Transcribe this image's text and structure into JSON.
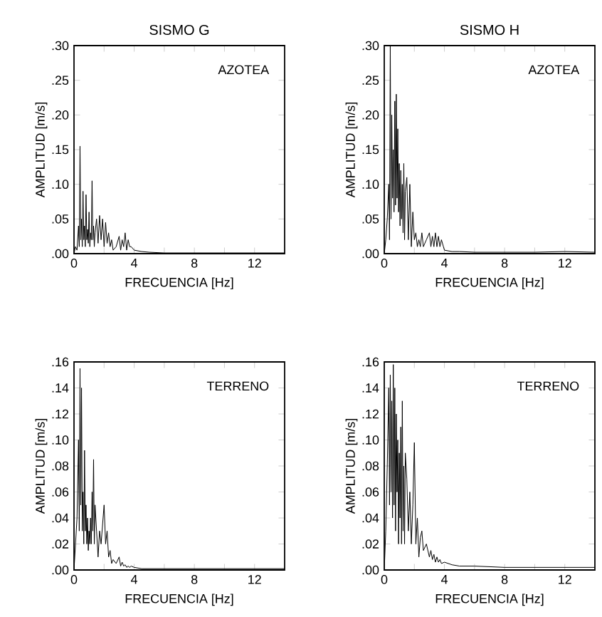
{
  "chart_data": [
    {
      "type": "line",
      "title": "SISMO G",
      "xlabel": "FRECUENCIA [Hz]",
      "ylabel": "AMPLITUD [m/s]",
      "annotations": [
        "AZOTEA"
      ],
      "xlim": [
        0,
        14
      ],
      "ylim": [
        0,
        0.3
      ],
      "xticks": [
        0,
        {
          "value": 2,
          "label": null
        },
        4,
        {
          "value": 6,
          "label": null
        },
        8,
        {
          "value": 10,
          "label": null
        },
        12
      ],
      "yticks": [
        {
          "value": 0,
          "label": ".00"
        },
        {
          "value": 0.05,
          "label": ".05"
        },
        {
          "value": 0.1,
          "label": ".10"
        },
        {
          "value": 0.15,
          "label": ".15"
        },
        {
          "value": 0.2,
          "label": ".20"
        },
        {
          "value": 0.25,
          "label": ".25"
        },
        {
          "value": 0.3,
          "label": ".30"
        }
      ],
      "x": [
        0,
        0.1,
        0.2,
        0.3,
        0.35,
        0.4,
        0.45,
        0.5,
        0.55,
        0.6,
        0.65,
        0.7,
        0.75,
        0.8,
        0.85,
        0.9,
        0.95,
        1.0,
        1.05,
        1.1,
        1.15,
        1.2,
        1.25,
        1.3,
        1.35,
        1.4,
        1.5,
        1.6,
        1.7,
        1.8,
        1.9,
        2.0,
        2.1,
        2.2,
        2.3,
        2.4,
        2.5,
        2.6,
        2.8,
        3.0,
        3.1,
        3.2,
        3.3,
        3.4,
        3.5,
        3.6,
        3.7,
        3.8,
        4.0,
        4.5,
        5,
        6,
        8,
        10,
        12,
        14
      ],
      "series": [
        {
          "color": "#000000",
          "values": [
            0,
            0.01,
            0.005,
            0.04,
            0.01,
            0.155,
            0.02,
            0.05,
            0.01,
            0.09,
            0.02,
            0.04,
            0.01,
            0.085,
            0.02,
            0.035,
            0.015,
            0.06,
            0.01,
            0.03,
            0.02,
            0.105,
            0.02,
            0.04,
            0.01,
            0.03,
            0.05,
            0.015,
            0.055,
            0.02,
            0.05,
            0.01,
            0.045,
            0.015,
            0.03,
            0.01,
            0.02,
            0.005,
            0.01,
            0.025,
            0.005,
            0.02,
            0.01,
            0.03,
            0.005,
            0.02,
            0.01,
            0.01,
            0.005,
            0.003,
            0.002,
            0.001,
            0.001,
            0.001,
            0.001,
            0.001
          ]
        }
      ]
    },
    {
      "type": "line",
      "title": "SISMO H",
      "xlabel": "FRECUENCIA [Hz]",
      "ylabel": "AMPLITUD [m/s]",
      "annotations": [
        "AZOTEA"
      ],
      "xlim": [
        0,
        14
      ],
      "ylim": [
        0,
        0.3
      ],
      "xticks": [
        0,
        {
          "value": 2,
          "label": null
        },
        4,
        {
          "value": 6,
          "label": null
        },
        8,
        {
          "value": 10,
          "label": null
        },
        12
      ],
      "yticks": [
        {
          "value": 0,
          "label": ".00"
        },
        {
          "value": 0.05,
          "label": ".05"
        },
        {
          "value": 0.1,
          "label": ".10"
        },
        {
          "value": 0.15,
          "label": ".15"
        },
        {
          "value": 0.2,
          "label": ".20"
        },
        {
          "value": 0.25,
          "label": ".25"
        },
        {
          "value": 0.3,
          "label": ".30"
        }
      ],
      "x": [
        0,
        0.1,
        0.2,
        0.3,
        0.35,
        0.4,
        0.45,
        0.5,
        0.55,
        0.6,
        0.65,
        0.7,
        0.75,
        0.8,
        0.85,
        0.9,
        0.95,
        1.0,
        1.05,
        1.1,
        1.15,
        1.2,
        1.25,
        1.3,
        1.35,
        1.4,
        1.5,
        1.6,
        1.7,
        1.8,
        1.9,
        2.0,
        2.1,
        2.2,
        2.3,
        2.4,
        2.5,
        2.6,
        2.8,
        3.0,
        3.1,
        3.2,
        3.3,
        3.4,
        3.5,
        3.6,
        3.7,
        3.8,
        4.0,
        4.5,
        5,
        6,
        8,
        10,
        12,
        14
      ],
      "series": [
        {
          "color": "#000000",
          "values": [
            0,
            0.02,
            0.05,
            0.1,
            0.02,
            0.3,
            0.05,
            0.2,
            0.08,
            0.15,
            0.06,
            0.22,
            0.07,
            0.23,
            0.08,
            0.18,
            0.06,
            0.13,
            0.04,
            0.12,
            0.05,
            0.1,
            0.03,
            0.13,
            0.02,
            0.09,
            0.11,
            0.02,
            0.1,
            0.01,
            0.06,
            0.02,
            0.03,
            0.01,
            0.02,
            0.01,
            0.03,
            0.01,
            0.02,
            0.03,
            0.01,
            0.025,
            0.01,
            0.03,
            0.01,
            0.025,
            0.01,
            0.02,
            0.005,
            0.003,
            0.003,
            0.002,
            0.002,
            0.002,
            0.003,
            0.002
          ]
        }
      ]
    },
    {
      "type": "line",
      "xlabel": "FRECUENCIA [Hz]",
      "ylabel": "AMPLITUD [m/s]",
      "annotations": [
        "TERRENO"
      ],
      "xlim": [
        0,
        14
      ],
      "ylim": [
        0,
        0.16
      ],
      "xticks": [
        0,
        {
          "value": 2,
          "label": null
        },
        4,
        {
          "value": 6,
          "label": null
        },
        8,
        {
          "value": 10,
          "label": null
        },
        12
      ],
      "yticks": [
        {
          "value": 0,
          "label": ".00"
        },
        {
          "value": 0.02,
          "label": ".02"
        },
        {
          "value": 0.04,
          "label": ".04"
        },
        {
          "value": 0.06,
          "label": ".06"
        },
        {
          "value": 0.08,
          "label": ".08"
        },
        {
          "value": 0.1,
          "label": ".10"
        },
        {
          "value": 0.12,
          "label": ".12"
        },
        {
          "value": 0.14,
          "label": ".14"
        },
        {
          "value": 0.16,
          "label": ".16"
        }
      ],
      "x": [
        0,
        0.1,
        0.2,
        0.3,
        0.35,
        0.4,
        0.45,
        0.5,
        0.55,
        0.6,
        0.65,
        0.7,
        0.75,
        0.8,
        0.85,
        0.9,
        0.95,
        1.0,
        1.05,
        1.1,
        1.15,
        1.2,
        1.25,
        1.3,
        1.35,
        1.4,
        1.5,
        1.6,
        1.7,
        1.8,
        1.9,
        2.0,
        2.1,
        2.2,
        2.3,
        2.4,
        2.5,
        2.6,
        2.8,
        3.0,
        3.1,
        3.2,
        3.3,
        3.4,
        3.5,
        3.6,
        3.7,
        3.8,
        4.0,
        4.5,
        5,
        6,
        8,
        10,
        12,
        14
      ],
      "series": [
        {
          "color": "#000000",
          "values": [
            0,
            0.02,
            0.04,
            0.1,
            0.03,
            0.155,
            0.05,
            0.14,
            0.03,
            0.06,
            0.02,
            0.092,
            0.03,
            0.05,
            0.02,
            0.04,
            0.015,
            0.03,
            0.02,
            0.04,
            0.02,
            0.06,
            0.03,
            0.085,
            0.02,
            0.05,
            0.03,
            0.01,
            0.03,
            0.02,
            0.035,
            0.05,
            0.02,
            0.03,
            0.01,
            0.015,
            0.005,
            0.008,
            0.005,
            0.01,
            0.003,
            0.006,
            0.003,
            0.004,
            0.002,
            0.003,
            0.002,
            0.003,
            0.002,
            0.001,
            0.001,
            0.001,
            0.001,
            0.001,
            0.001,
            0.001
          ]
        }
      ]
    },
    {
      "type": "line",
      "xlabel": "FRECUENCIA [Hz]",
      "ylabel": "AMPLITUD [m/s]",
      "annotations": [
        "TERRENO"
      ],
      "xlim": [
        0,
        14
      ],
      "ylim": [
        0,
        0.16
      ],
      "xticks": [
        0,
        {
          "value": 2,
          "label": null
        },
        4,
        {
          "value": 6,
          "label": null
        },
        8,
        {
          "value": 10,
          "label": null
        },
        12
      ],
      "yticks": [
        {
          "value": 0,
          "label": ".00"
        },
        {
          "value": 0.02,
          "label": ".02"
        },
        {
          "value": 0.04,
          "label": ".04"
        },
        {
          "value": 0.06,
          "label": ".06"
        },
        {
          "value": 0.08,
          "label": ".08"
        },
        {
          "value": 0.1,
          "label": ".10"
        },
        {
          "value": 0.12,
          "label": ".12"
        },
        {
          "value": 0.14,
          "label": ".14"
        },
        {
          "value": 0.16,
          "label": ".16"
        }
      ],
      "x": [
        0,
        0.1,
        0.2,
        0.3,
        0.35,
        0.4,
        0.45,
        0.5,
        0.55,
        0.6,
        0.65,
        0.7,
        0.75,
        0.8,
        0.85,
        0.9,
        0.95,
        1.0,
        1.05,
        1.1,
        1.15,
        1.2,
        1.25,
        1.3,
        1.35,
        1.4,
        1.5,
        1.6,
        1.7,
        1.8,
        1.9,
        2.0,
        2.1,
        2.2,
        2.3,
        2.4,
        2.5,
        2.6,
        2.8,
        3.0,
        3.1,
        3.2,
        3.3,
        3.4,
        3.5,
        3.6,
        3.7,
        3.8,
        4.0,
        4.5,
        5,
        6,
        8,
        10,
        12,
        14
      ],
      "series": [
        {
          "color": "#000000",
          "values": [
            0,
            0.03,
            0.08,
            0.14,
            0.05,
            0.15,
            0.06,
            0.13,
            0.04,
            0.158,
            0.05,
            0.14,
            0.03,
            0.12,
            0.06,
            0.1,
            0.02,
            0.09,
            0.04,
            0.11,
            0.02,
            0.13,
            0.03,
            0.08,
            0.02,
            0.09,
            0.07,
            0.03,
            0.06,
            0.02,
            0.05,
            0.098,
            0.02,
            0.04,
            0.01,
            0.025,
            0.03,
            0.015,
            0.02,
            0.01,
            0.015,
            0.008,
            0.012,
            0.006,
            0.01,
            0.006,
            0.008,
            0.005,
            0.006,
            0.004,
            0.003,
            0.003,
            0.002,
            0.002,
            0.002,
            0.002
          ]
        }
      ]
    }
  ]
}
